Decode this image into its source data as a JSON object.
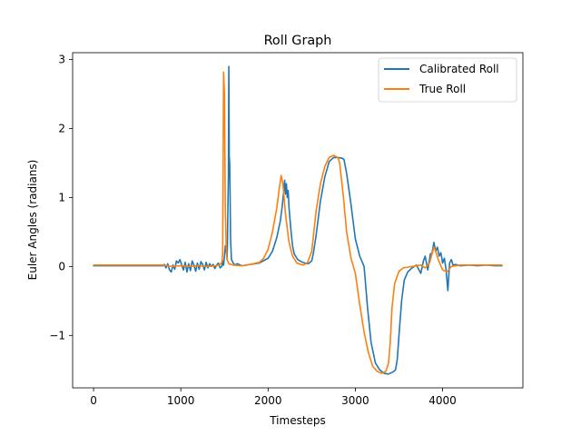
{
  "chart_data": {
    "type": "line",
    "title": "Roll Graph",
    "xlabel": "Timesteps",
    "ylabel": "Euler Angles (radians)",
    "xlim": [
      -240,
      4920
    ],
    "ylim": [
      -1.76,
      3.1
    ],
    "xticks": [
      0,
      1000,
      2000,
      3000,
      4000
    ],
    "yticks": [
      -1,
      0,
      1,
      2,
      3
    ],
    "ytick_labels": [
      "−1",
      "0",
      "1",
      "2",
      "3"
    ],
    "legend_position": "top-right",
    "grid": false,
    "series": [
      {
        "name": "Calibrated Roll",
        "color": "#1f77b4",
        "points": [
          [
            0,
            0.01
          ],
          [
            800,
            0.01
          ],
          [
            810,
            0.03
          ],
          [
            830,
            -0.02
          ],
          [
            850,
            0.04
          ],
          [
            870,
            -0.05
          ],
          [
            890,
            -0.08
          ],
          [
            910,
            0.02
          ],
          [
            930,
            -0.04
          ],
          [
            950,
            0.08
          ],
          [
            970,
            0.05
          ],
          [
            990,
            0.1
          ],
          [
            1010,
            0.02
          ],
          [
            1030,
            -0.05
          ],
          [
            1050,
            0.06
          ],
          [
            1070,
            -0.08
          ],
          [
            1090,
            0.04
          ],
          [
            1110,
            -0.06
          ],
          [
            1130,
            0.08
          ],
          [
            1150,
            0.02
          ],
          [
            1170,
            -0.07
          ],
          [
            1190,
            0.05
          ],
          [
            1210,
            -0.04
          ],
          [
            1230,
            0.07
          ],
          [
            1250,
            0.03
          ],
          [
            1270,
            -0.05
          ],
          [
            1290,
            0.06
          ],
          [
            1310,
            -0.02
          ],
          [
            1330,
            0.04
          ],
          [
            1350,
            0.0
          ],
          [
            1370,
            0.03
          ],
          [
            1390,
            -0.03
          ],
          [
            1410,
            0.02
          ],
          [
            1430,
            0.05
          ],
          [
            1450,
            -0.02
          ],
          [
            1470,
            0.0
          ],
          [
            1480,
            0.08
          ],
          [
            1490,
            0.02
          ],
          [
            1500,
            0.15
          ],
          [
            1510,
            0.3
          ],
          [
            1520,
            0.25
          ],
          [
            1530,
            0.1
          ],
          [
            1535,
            0.4
          ],
          [
            1540,
            0.9
          ],
          [
            1545,
            1.3
          ],
          [
            1550,
            2.9
          ],
          [
            1555,
            1.6
          ],
          [
            1560,
            1.5
          ],
          [
            1565,
            1.0
          ],
          [
            1570,
            0.4
          ],
          [
            1580,
            0.1
          ],
          [
            1600,
            0.05
          ],
          [
            1620,
            0.02
          ],
          [
            1650,
            0.04
          ],
          [
            1700,
            0.01
          ],
          [
            1800,
            0.03
          ],
          [
            1900,
            0.05
          ],
          [
            2000,
            0.12
          ],
          [
            2050,
            0.22
          ],
          [
            2100,
            0.42
          ],
          [
            2140,
            0.66
          ],
          [
            2160,
            0.85
          ],
          [
            2180,
            1.1
          ],
          [
            2190,
            1.25
          ],
          [
            2200,
            1.05
          ],
          [
            2210,
            1.2
          ],
          [
            2220,
            1.0
          ],
          [
            2230,
            1.1
          ],
          [
            2240,
            0.85
          ],
          [
            2260,
            0.55
          ],
          [
            2280,
            0.3
          ],
          [
            2300,
            0.18
          ],
          [
            2340,
            0.1
          ],
          [
            2380,
            0.07
          ],
          [
            2420,
            0.05
          ],
          [
            2460,
            0.04
          ],
          [
            2500,
            0.08
          ],
          [
            2520,
            0.2
          ],
          [
            2550,
            0.45
          ],
          [
            2600,
            0.95
          ],
          [
            2650,
            1.3
          ],
          [
            2700,
            1.52
          ],
          [
            2750,
            1.58
          ],
          [
            2800,
            1.58
          ],
          [
            2850,
            1.57
          ],
          [
            2870,
            1.55
          ],
          [
            2900,
            1.35
          ],
          [
            2950,
            0.9
          ],
          [
            3000,
            0.4
          ],
          [
            3050,
            0.15
          ],
          [
            3100,
            0.0
          ],
          [
            3140,
            -0.6
          ],
          [
            3180,
            -1.1
          ],
          [
            3230,
            -1.4
          ],
          [
            3280,
            -1.5
          ],
          [
            3330,
            -1.55
          ],
          [
            3380,
            -1.56
          ],
          [
            3430,
            -1.53
          ],
          [
            3460,
            -1.5
          ],
          [
            3480,
            -1.35
          ],
          [
            3500,
            -1.0
          ],
          [
            3530,
            -0.5
          ],
          [
            3560,
            -0.2
          ],
          [
            3600,
            -0.08
          ],
          [
            3650,
            -0.02
          ],
          [
            3700,
            0.02
          ],
          [
            3750,
            -0.1
          ],
          [
            3780,
            0.08
          ],
          [
            3800,
            0.15
          ],
          [
            3830,
            -0.05
          ],
          [
            3860,
            0.18
          ],
          [
            3880,
            0.2
          ],
          [
            3900,
            0.35
          ],
          [
            3920,
            0.22
          ],
          [
            3940,
            0.28
          ],
          [
            3960,
            0.15
          ],
          [
            3980,
            0.2
          ],
          [
            4000,
            0.05
          ],
          [
            4020,
            0.12
          ],
          [
            4040,
            -0.05
          ],
          [
            4060,
            -0.35
          ],
          [
            4080,
            0.05
          ],
          [
            4100,
            0.1
          ],
          [
            4120,
            0.02
          ],
          [
            4150,
            0.03
          ],
          [
            4200,
            0.01
          ],
          [
            4300,
            0.02
          ],
          [
            4400,
            0.01
          ],
          [
            4500,
            0.02
          ],
          [
            4600,
            0.01
          ],
          [
            4680,
            0.01
          ]
        ]
      },
      {
        "name": "True Roll",
        "color": "#ff7f0e",
        "points": [
          [
            0,
            0.02
          ],
          [
            800,
            0.02
          ],
          [
            900,
            0.0
          ],
          [
            1000,
            0.01
          ],
          [
            1100,
            0.0
          ],
          [
            1200,
            0.01
          ],
          [
            1300,
            0.0
          ],
          [
            1400,
            0.01
          ],
          [
            1450,
            0.03
          ],
          [
            1470,
            0.06
          ],
          [
            1480,
            0.2
          ],
          [
            1490,
            2.82
          ],
          [
            1500,
            2.5
          ],
          [
            1510,
            0.8
          ],
          [
            1520,
            0.3
          ],
          [
            1530,
            0.1
          ],
          [
            1550,
            0.04
          ],
          [
            1600,
            0.02
          ],
          [
            1700,
            0.01
          ],
          [
            1800,
            0.03
          ],
          [
            1900,
            0.06
          ],
          [
            1950,
            0.12
          ],
          [
            2000,
            0.25
          ],
          [
            2050,
            0.5
          ],
          [
            2100,
            0.85
          ],
          [
            2130,
            1.15
          ],
          [
            2150,
            1.32
          ],
          [
            2170,
            1.2
          ],
          [
            2200,
            0.75
          ],
          [
            2240,
            0.35
          ],
          [
            2280,
            0.15
          ],
          [
            2330,
            0.05
          ],
          [
            2400,
            0.02
          ],
          [
            2450,
            0.05
          ],
          [
            2500,
            0.22
          ],
          [
            2550,
            0.8
          ],
          [
            2600,
            1.2
          ],
          [
            2650,
            1.45
          ],
          [
            2700,
            1.58
          ],
          [
            2750,
            1.61
          ],
          [
            2800,
            1.58
          ],
          [
            2820,
            1.5
          ],
          [
            2860,
            1.05
          ],
          [
            2900,
            0.5
          ],
          [
            2950,
            0.12
          ],
          [
            3000,
            -0.1
          ],
          [
            3050,
            -0.55
          ],
          [
            3100,
            -0.95
          ],
          [
            3150,
            -1.25
          ],
          [
            3200,
            -1.45
          ],
          [
            3250,
            -1.52
          ],
          [
            3300,
            -1.55
          ],
          [
            3350,
            -1.52
          ],
          [
            3380,
            -1.4
          ],
          [
            3400,
            -1.1
          ],
          [
            3420,
            -0.6
          ],
          [
            3450,
            -0.25
          ],
          [
            3500,
            -0.07
          ],
          [
            3550,
            -0.02
          ],
          [
            3650,
            0.0
          ],
          [
            3750,
            0.02
          ],
          [
            3800,
            -0.02
          ],
          [
            3850,
            0.05
          ],
          [
            3900,
            0.28
          ],
          [
            3920,
            0.22
          ],
          [
            3950,
            0.1
          ],
          [
            4000,
            -0.05
          ],
          [
            4050,
            -0.08
          ],
          [
            4100,
            0.0
          ],
          [
            4200,
            0.02
          ],
          [
            4400,
            0.02
          ],
          [
            4600,
            0.02
          ],
          [
            4680,
            0.02
          ]
        ]
      }
    ]
  }
}
